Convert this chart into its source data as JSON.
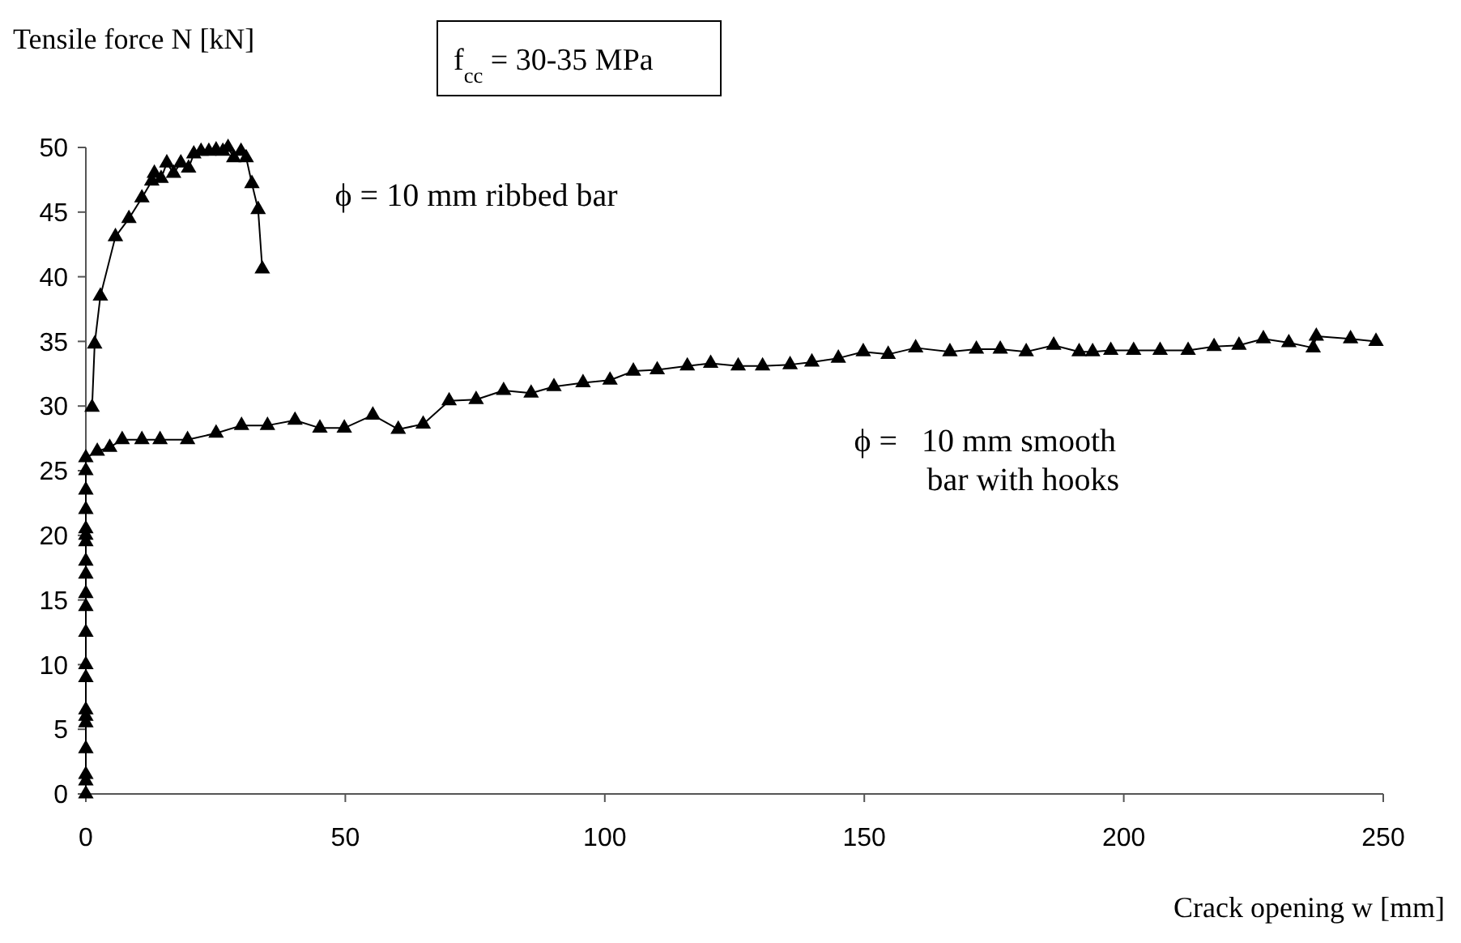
{
  "chart_data": {
    "type": "line",
    "xlabel": "Crack opening  w [mm]",
    "ylabel": "Tensile force N [kN]",
    "annotations": [
      "f$_{cc}$ = 30-35 MPa"
    ],
    "xlim": [
      0,
      250
    ],
    "xticks": [
      0,
      50,
      100,
      150,
      200,
      250
    ],
    "ylim": [
      0,
      50
    ],
    "yticks": [
      0,
      5,
      10,
      15,
      20,
      25,
      30,
      35,
      40,
      45,
      50
    ],
    "grid": false,
    "marker": "triangle",
    "line_style": "solid",
    "series": [
      {
        "name": "ϕ = 10 mm ribbed bar",
        "color": "#000000",
        "x": [
          1.2,
          1.7,
          2.8,
          5.7,
          8.3,
          10.8,
          12.7,
          13.2,
          14.5,
          15.6,
          16.9,
          18.3,
          19.8,
          20.8,
          22.2,
          23.7,
          25.1,
          26.4,
          27.4,
          28.5,
          29.9,
          30.9,
          32,
          33.2,
          34
        ],
        "values": [
          29.9,
          34.8,
          38.5,
          43.1,
          44.5,
          46.1,
          47.4,
          48,
          47.6,
          48.8,
          48,
          48.8,
          48.4,
          49.5,
          49.7,
          49.7,
          49.8,
          49.7,
          50,
          49.2,
          49.7,
          49.2,
          47.2,
          45.2,
          40.6
        ]
      },
      {
        "name": "ϕ =   10 mm smooth bar with hooks",
        "color": "#000000",
        "x": [
          0,
          0,
          0,
          0,
          0,
          0,
          0,
          0,
          0,
          0,
          0,
          0,
          0,
          0,
          0,
          0,
          0,
          0,
          0,
          0,
          0,
          2.2,
          4.6,
          7,
          10.8,
          14.3,
          19.6,
          25.1,
          30,
          35,
          40.3,
          45.1,
          49.8,
          55.3,
          60.2,
          65,
          70,
          75.2,
          80.5,
          85.8,
          90.2,
          95.8,
          101,
          105.5,
          110.1,
          115.9,
          120.4,
          125.7,
          130.4,
          135.7,
          139.9,
          145,
          149.8,
          154.6,
          159.9,
          166.5,
          171.6,
          176.2,
          181.2,
          186.5,
          191.4,
          194,
          197.5,
          201.9,
          207,
          212.4,
          217.4,
          222.2,
          226.9,
          231.8,
          236.5,
          237.1,
          243.7,
          248.6
        ],
        "values": [
          0,
          1,
          1.5,
          3.5,
          5.5,
          6,
          6.5,
          9,
          10,
          12.5,
          14.5,
          15.5,
          17,
          18,
          19.5,
          20,
          20.5,
          22,
          23.5,
          25,
          26,
          26.5,
          26.8,
          27.4,
          27.4,
          27.4,
          27.4,
          27.9,
          28.5,
          28.5,
          28.9,
          28.3,
          28.3,
          29.3,
          28.2,
          28.6,
          30.4,
          30.5,
          31.2,
          31,
          31.5,
          31.8,
          32,
          32.7,
          32.8,
          33.1,
          33.3,
          33.1,
          33.1,
          33.2,
          33.4,
          33.7,
          34.2,
          34,
          34.5,
          34.2,
          34.4,
          34.4,
          34.2,
          34.7,
          34.2,
          34.2,
          34.3,
          34.3,
          34.3,
          34.3,
          34.6,
          34.7,
          35.2,
          34.9,
          34.5,
          35.4,
          35.2,
          35
        ]
      }
    ]
  }
}
